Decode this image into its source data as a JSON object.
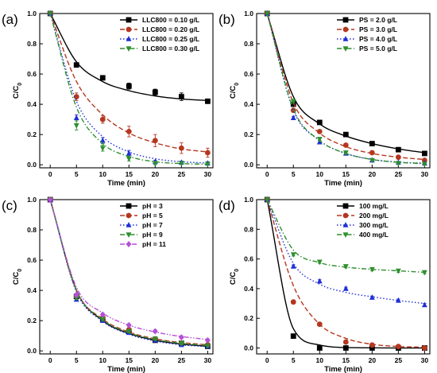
{
  "chart_data": [
    {
      "type": "line",
      "panel_label": "(a)",
      "xlabel": "Time (min)",
      "ylabel": "C/C0",
      "xlim": [
        -2,
        31
      ],
      "ylim": [
        -0.02,
        1.0
      ],
      "xticks": [
        0,
        5,
        10,
        15,
        20,
        25,
        30
      ],
      "yticks": [
        0.0,
        0.2,
        0.4,
        0.6,
        0.8,
        1.0
      ],
      "legend_position": "top-right",
      "series": [
        {
          "name": "LLC800 = 0.10 g/L",
          "color": "#000000",
          "marker": "square",
          "dash": "solid",
          "x": [
            0,
            5,
            10,
            15,
            20,
            25,
            30
          ],
          "y": [
            1.0,
            0.66,
            0.575,
            0.52,
            0.48,
            0.45,
            0.42
          ],
          "err": [
            0,
            0.01,
            0.015,
            0.02,
            0.02,
            0.025,
            0.015
          ],
          "fit": [
            1.0,
            0.68,
            0.55,
            0.49,
            0.455,
            0.435,
            0.425
          ]
        },
        {
          "name": "LLC800 = 0.20 g/L",
          "color": "#b5371f",
          "marker": "circle",
          "dash": "dashed",
          "x": [
            0,
            5,
            10,
            15,
            20,
            25,
            30
          ],
          "y": [
            1.0,
            0.45,
            0.3,
            0.22,
            0.16,
            0.11,
            0.08
          ],
          "err": [
            0,
            0.025,
            0.025,
            0.035,
            0.04,
            0.035,
            0.03
          ],
          "fit": [
            1.0,
            0.55,
            0.33,
            0.21,
            0.145,
            0.105,
            0.085
          ]
        },
        {
          "name": "LLC800 = 0.25 g/L",
          "color": "#1f2fd6",
          "marker": "triangle-up",
          "dash": "dotted",
          "x": [
            0,
            5,
            10,
            15,
            20,
            25,
            30
          ],
          "y": [
            1.0,
            0.31,
            0.16,
            0.075,
            0.02,
            0.015,
            0.01
          ],
          "err": [
            0,
            0.02,
            0.02,
            0.02,
            0.01,
            0.01,
            0.01
          ],
          "fit": [
            1.0,
            0.42,
            0.185,
            0.085,
            0.04,
            0.02,
            0.012
          ]
        },
        {
          "name": "LLC800 = 0.30 g/L",
          "color": "#2e8f2e",
          "marker": "triangle-down",
          "dash": "dashdot",
          "x": [
            0,
            5,
            10,
            15,
            20,
            25,
            30
          ],
          "y": [
            1.0,
            0.26,
            0.11,
            0.04,
            0.01,
            0.01,
            0.005
          ],
          "err": [
            0,
            0.03,
            0.02,
            0.015,
            0.01,
            0.005,
            0.005
          ],
          "fit": [
            1.0,
            0.38,
            0.14,
            0.055,
            0.02,
            0.008,
            0.004
          ]
        }
      ]
    },
    {
      "type": "line",
      "panel_label": "(b)",
      "xlabel": "Time (min)",
      "ylabel": "C/C0",
      "xlim": [
        -2,
        31
      ],
      "ylim": [
        -0.02,
        1.0
      ],
      "xticks": [
        0,
        5,
        10,
        15,
        20,
        25,
        30
      ],
      "yticks": [
        0.0,
        0.2,
        0.4,
        0.6,
        0.8,
        1.0
      ],
      "legend_position": "top-right",
      "series": [
        {
          "name": "PS = 2.0 g/L",
          "color": "#000000",
          "marker": "square",
          "dash": "solid",
          "x": [
            0,
            5,
            10,
            15,
            20,
            25,
            30
          ],
          "y": [
            1.0,
            0.4,
            0.28,
            0.2,
            0.14,
            0.1,
            0.075
          ],
          "err": [
            0,
            0.01,
            0.01,
            0.01,
            0.01,
            0.01,
            0.01
          ],
          "fit": [
            1.0,
            0.45,
            0.27,
            0.19,
            0.14,
            0.105,
            0.08
          ]
        },
        {
          "name": "PS = 3.0 g/L",
          "color": "#b5371f",
          "marker": "circle",
          "dash": "dashed",
          "x": [
            0,
            5,
            10,
            15,
            20,
            25,
            30
          ],
          "y": [
            1.0,
            0.36,
            0.22,
            0.13,
            0.08,
            0.05,
            0.03
          ],
          "err": [
            0,
            0.01,
            0.01,
            0.01,
            0.01,
            0.01,
            0.01
          ],
          "fit": [
            1.0,
            0.41,
            0.21,
            0.12,
            0.075,
            0.05,
            0.035
          ]
        },
        {
          "name": "PS = 4.0 g/L",
          "color": "#1f2fd6",
          "marker": "triangle-up",
          "dash": "dotted",
          "x": [
            0,
            5,
            10,
            15,
            20,
            25,
            30
          ],
          "y": [
            1.0,
            0.31,
            0.15,
            0.075,
            0.03,
            0.015,
            0.01
          ],
          "err": [
            0,
            0.01,
            0.01,
            0.01,
            0.005,
            0.005,
            0.005
          ],
          "fit": [
            1.0,
            0.36,
            0.16,
            0.075,
            0.035,
            0.018,
            0.01
          ]
        },
        {
          "name": "PS = 5.0 g/L",
          "color": "#2e8f2e",
          "marker": "triangle-down",
          "dash": "dashdot",
          "x": [
            0,
            5,
            10,
            15,
            20,
            25,
            30
          ],
          "y": [
            1.0,
            0.42,
            0.17,
            0.08,
            0.03,
            0.01,
            0.005
          ],
          "err": [
            0,
            0.01,
            0.01,
            0.01,
            0.005,
            0.005,
            0.005
          ],
          "fit": [
            1.0,
            0.37,
            0.16,
            0.075,
            0.035,
            0.016,
            0.008
          ]
        }
      ]
    },
    {
      "type": "line",
      "panel_label": "(c)",
      "xlabel": "Time (min)",
      "ylabel": "C/C0",
      "xlim": [
        -2,
        31
      ],
      "ylim": [
        -0.02,
        1.0
      ],
      "xticks": [
        0,
        5,
        10,
        15,
        20,
        25,
        30
      ],
      "yticks": [
        0.0,
        0.2,
        0.4,
        0.6,
        0.8,
        1.0
      ],
      "legend_position": "top-right",
      "series": [
        {
          "name": "pH = 3",
          "color": "#000000",
          "marker": "square",
          "dash": "solid",
          "x": [
            0,
            5,
            10,
            15,
            20,
            25,
            30
          ],
          "y": [
            1.0,
            0.36,
            0.21,
            0.13,
            0.07,
            0.05,
            0.03
          ],
          "err": [
            0,
            0.01,
            0.01,
            0.01,
            0.01,
            0.01,
            0.01
          ],
          "fit": [
            1.0,
            0.4,
            0.2,
            0.115,
            0.07,
            0.045,
            0.03
          ]
        },
        {
          "name": "pH = 5",
          "color": "#b5371f",
          "marker": "circle",
          "dash": "dashed",
          "x": [
            0,
            5,
            10,
            15,
            20,
            25,
            30
          ],
          "y": [
            1.0,
            0.36,
            0.22,
            0.14,
            0.08,
            0.05,
            0.04
          ],
          "err": [
            0,
            0.01,
            0.01,
            0.01,
            0.01,
            0.01,
            0.01
          ],
          "fit": [
            1.0,
            0.4,
            0.21,
            0.125,
            0.08,
            0.055,
            0.04
          ]
        },
        {
          "name": "pH = 7",
          "color": "#1f2fd6",
          "marker": "triangle-up",
          "dash": "dotted",
          "x": [
            0,
            5,
            10,
            15,
            20,
            25,
            30
          ],
          "y": [
            1.0,
            0.34,
            0.2,
            0.12,
            0.07,
            0.04,
            0.03
          ],
          "err": [
            0,
            0.01,
            0.01,
            0.01,
            0.01,
            0.01,
            0.01
          ],
          "fit": [
            1.0,
            0.39,
            0.195,
            0.11,
            0.065,
            0.04,
            0.028
          ]
        },
        {
          "name": "pH = 9",
          "color": "#2e8f2e",
          "marker": "triangle-down",
          "dash": "dashdot",
          "x": [
            0,
            5,
            10,
            15,
            20,
            25,
            30
          ],
          "y": [
            1.0,
            0.35,
            0.21,
            0.13,
            0.08,
            0.05,
            0.035
          ],
          "err": [
            0,
            0.01,
            0.01,
            0.01,
            0.01,
            0.01,
            0.01
          ],
          "fit": [
            1.0,
            0.4,
            0.205,
            0.12,
            0.075,
            0.05,
            0.035
          ]
        },
        {
          "name": "pH = 11",
          "color": "#b54fd6",
          "marker": "diamond",
          "dash": "dashdotdot",
          "x": [
            0,
            5,
            10,
            15,
            20,
            25,
            30
          ],
          "y": [
            1.0,
            0.37,
            0.24,
            0.17,
            0.13,
            0.09,
            0.07
          ],
          "err": [
            0,
            0.01,
            0.01,
            0.01,
            0.01,
            0.01,
            0.01
          ],
          "fit": [
            1.0,
            0.42,
            0.25,
            0.17,
            0.125,
            0.095,
            0.075
          ]
        }
      ]
    },
    {
      "type": "line",
      "panel_label": "(d)",
      "xlabel": "Time (min)",
      "ylabel": "C/C0",
      "xlim": [
        -2,
        31
      ],
      "ylim": [
        -0.04,
        1.0
      ],
      "xticks": [
        0,
        5,
        10,
        15,
        20,
        25,
        30
      ],
      "yticks": [
        0.0,
        0.2,
        0.4,
        0.6,
        0.8,
        1.0
      ],
      "legend_position": "top-right",
      "series": [
        {
          "name": "100 mg/L",
          "color": "#000000",
          "marker": "square",
          "dash": "solid",
          "x": [
            0,
            5,
            10,
            15,
            20,
            25,
            30
          ],
          "y": [
            1.0,
            0.08,
            0.0,
            0.0,
            0.0,
            0.0,
            0.0
          ],
          "err": [
            0,
            0.005,
            0.005,
            0.005,
            0.005,
            0.005,
            0.005
          ],
          "fit": [
            1.0,
            0.13,
            0.02,
            0.003,
            0.001,
            0.0,
            0.0
          ]
        },
        {
          "name": "200 mg/L",
          "color": "#b5371f",
          "marker": "circle",
          "dash": "dashed",
          "x": [
            0,
            5,
            10,
            15,
            20,
            25,
            30
          ],
          "y": [
            1.0,
            0.31,
            0.16,
            0.04,
            0.02,
            0.01,
            0.0
          ],
          "err": [
            0,
            0.01,
            0.01,
            0.01,
            0.01,
            0.01,
            0.01
          ],
          "fit": [
            1.0,
            0.42,
            0.16,
            0.065,
            0.025,
            0.01,
            0.005
          ]
        },
        {
          "name": "300 mg/L",
          "color": "#1f2fd6",
          "marker": "triangle-up",
          "dash": "dotted",
          "x": [
            0,
            5,
            10,
            15,
            20,
            25,
            30
          ],
          "y": [
            1.0,
            0.55,
            0.45,
            0.4,
            0.34,
            0.32,
            0.29
          ],
          "err": [
            0,
            0.01,
            0.01,
            0.01,
            0.01,
            0.01,
            0.01
          ],
          "fit": [
            1.0,
            0.57,
            0.43,
            0.375,
            0.345,
            0.32,
            0.3
          ]
        },
        {
          "name": "400 mg/L",
          "color": "#2e8f2e",
          "marker": "triangle-down",
          "dash": "dashdot",
          "x": [
            0,
            5,
            10,
            15,
            20,
            25,
            30
          ],
          "y": [
            1.0,
            0.63,
            0.58,
            0.55,
            0.53,
            0.52,
            0.51
          ],
          "err": [
            0,
            0.01,
            0.01,
            0.01,
            0.01,
            0.01,
            0.01
          ],
          "fit": [
            1.0,
            0.66,
            0.575,
            0.545,
            0.53,
            0.52,
            0.51
          ]
        }
      ]
    }
  ]
}
